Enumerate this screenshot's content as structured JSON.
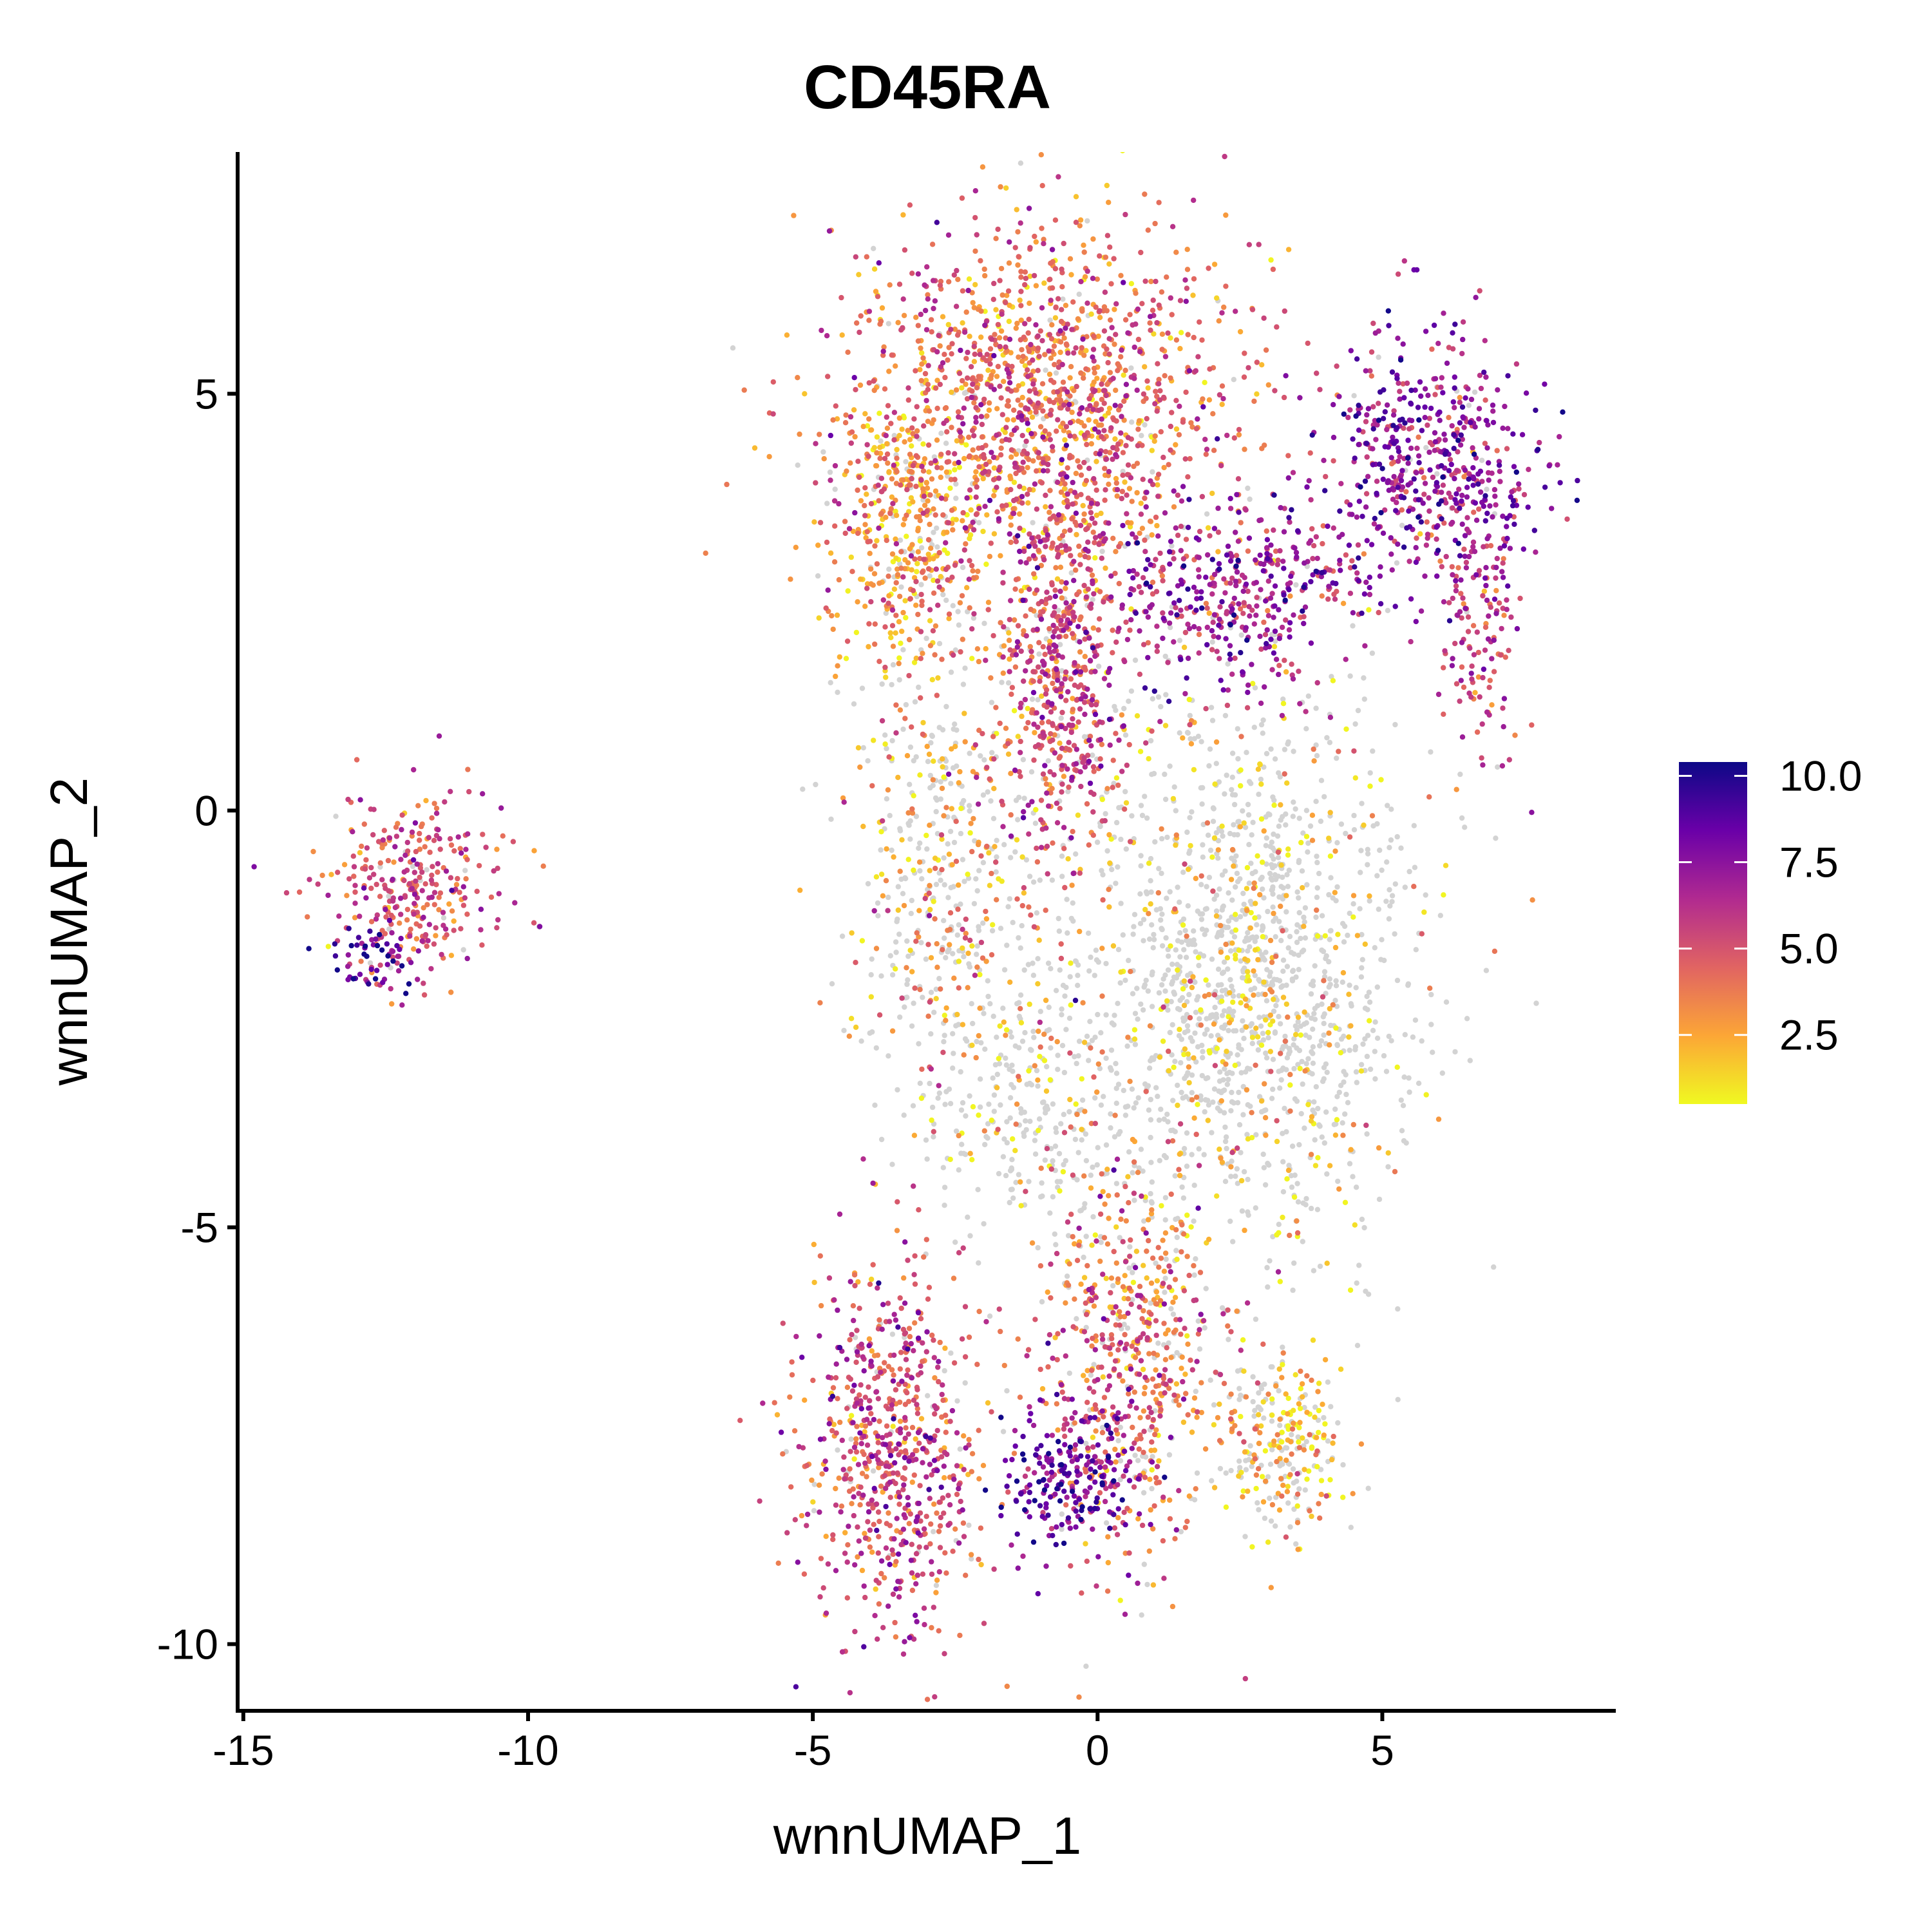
{
  "chart_data": {
    "type": "scatter",
    "title": "CD45RA",
    "xlabel": "wnnUMAP_1",
    "ylabel": "wnnUMAP_2",
    "xlim": [
      -15.1,
      9.1
    ],
    "ylim": [
      -10.8,
      7.9
    ],
    "xticks": [
      -15,
      -10,
      -5,
      0,
      5
    ],
    "xtick_labels": [
      "-15",
      "-10",
      "-5",
      "0",
      "5"
    ],
    "yticks": [
      5,
      0,
      -5,
      -10
    ],
    "ytick_labels": [
      "5",
      "0",
      "-5",
      "-10"
    ],
    "grid": false,
    "legend": {
      "position": "right",
      "type": "colorbar",
      "colormap": "plasma",
      "range": [
        0.5,
        10.4
      ],
      "ticks": [
        10.0,
        7.5,
        5.0,
        2.5
      ],
      "tick_labels": [
        "10.0",
        "7.5",
        "5.0",
        "2.5"
      ],
      "colors": [
        "#0d0887",
        "#6a00a8",
        "#b12a90",
        "#e16462",
        "#fca636",
        "#f0f921"
      ]
    },
    "background_point_color": "#d3d3d3",
    "clusters": [
      {
        "name": "left island",
        "cx": -12.0,
        "cy": -0.9,
        "sx": 0.75,
        "sy": 0.55,
        "mean": 5.0,
        "expr_frac": 0.97,
        "weight": 0.035
      },
      {
        "name": "left island low",
        "cx": -12.7,
        "cy": -1.7,
        "sx": 0.35,
        "sy": 0.25,
        "mean": 8.6,
        "expr_frac": 1.0,
        "weight": 0.006
      },
      {
        "name": "upper head",
        "cx": -1.0,
        "cy": 4.9,
        "sx": 1.7,
        "sy": 1.1,
        "mean": 4.2,
        "expr_frac": 0.96,
        "weight": 0.16
      },
      {
        "name": "upper head left",
        "cx": -3.3,
        "cy": 3.4,
        "sx": 0.7,
        "sy": 0.9,
        "mean": 3.0,
        "expr_frac": 0.85,
        "weight": 0.045
      },
      {
        "name": "center stem",
        "cx": -0.6,
        "cy": 1.8,
        "sx": 0.55,
        "sy": 1.2,
        "mean": 5.0,
        "expr_frac": 0.93,
        "weight": 0.07
      },
      {
        "name": "right arm",
        "cx": 2.6,
        "cy": 2.6,
        "sx": 1.2,
        "sy": 0.6,
        "mean": 6.8,
        "expr_frac": 0.96,
        "weight": 0.05
      },
      {
        "name": "right lobe",
        "cx": 5.8,
        "cy": 4.2,
        "sx": 0.9,
        "sy": 0.75,
        "mean": 7.2,
        "expr_frac": 0.98,
        "weight": 0.06
      },
      {
        "name": "right hook",
        "cx": 6.7,
        "cy": 2.0,
        "sx": 0.35,
        "sy": 0.8,
        "mean": 5.8,
        "expr_frac": 0.95,
        "weight": 0.015
      },
      {
        "name": "middle grey mass",
        "cx": 2.6,
        "cy": -2.0,
        "sx": 1.5,
        "sy": 1.6,
        "mean": 1.8,
        "expr_frac": 0.22,
        "weight": 0.17
      },
      {
        "name": "left streaks",
        "cx": -2.7,
        "cy": -0.6,
        "sx": 0.9,
        "sy": 1.6,
        "mean": 3.0,
        "expr_frac": 0.45,
        "weight": 0.06
      },
      {
        "name": "lower connector",
        "cx": -1.2,
        "cy": -3.6,
        "sx": 0.9,
        "sy": 0.8,
        "mean": 2.0,
        "expr_frac": 0.25,
        "weight": 0.03
      },
      {
        "name": "lower left",
        "cx": -3.6,
        "cy": -7.6,
        "sx": 0.85,
        "sy": 1.1,
        "mean": 5.2,
        "expr_frac": 0.94,
        "weight": 0.08
      },
      {
        "name": "lower center",
        "cx": 0.6,
        "cy": -6.6,
        "sx": 0.8,
        "sy": 1.2,
        "mean": 4.2,
        "expr_frac": 0.82,
        "weight": 0.07
      },
      {
        "name": "lower center core",
        "cx": -0.5,
        "cy": -8.0,
        "sx": 0.55,
        "sy": 0.45,
        "mean": 8.2,
        "expr_frac": 1.0,
        "weight": 0.025
      },
      {
        "name": "lower right",
        "cx": 3.2,
        "cy": -7.6,
        "sx": 0.55,
        "sy": 0.55,
        "mean": 2.0,
        "expr_frac": 0.6,
        "weight": 0.03
      }
    ]
  }
}
